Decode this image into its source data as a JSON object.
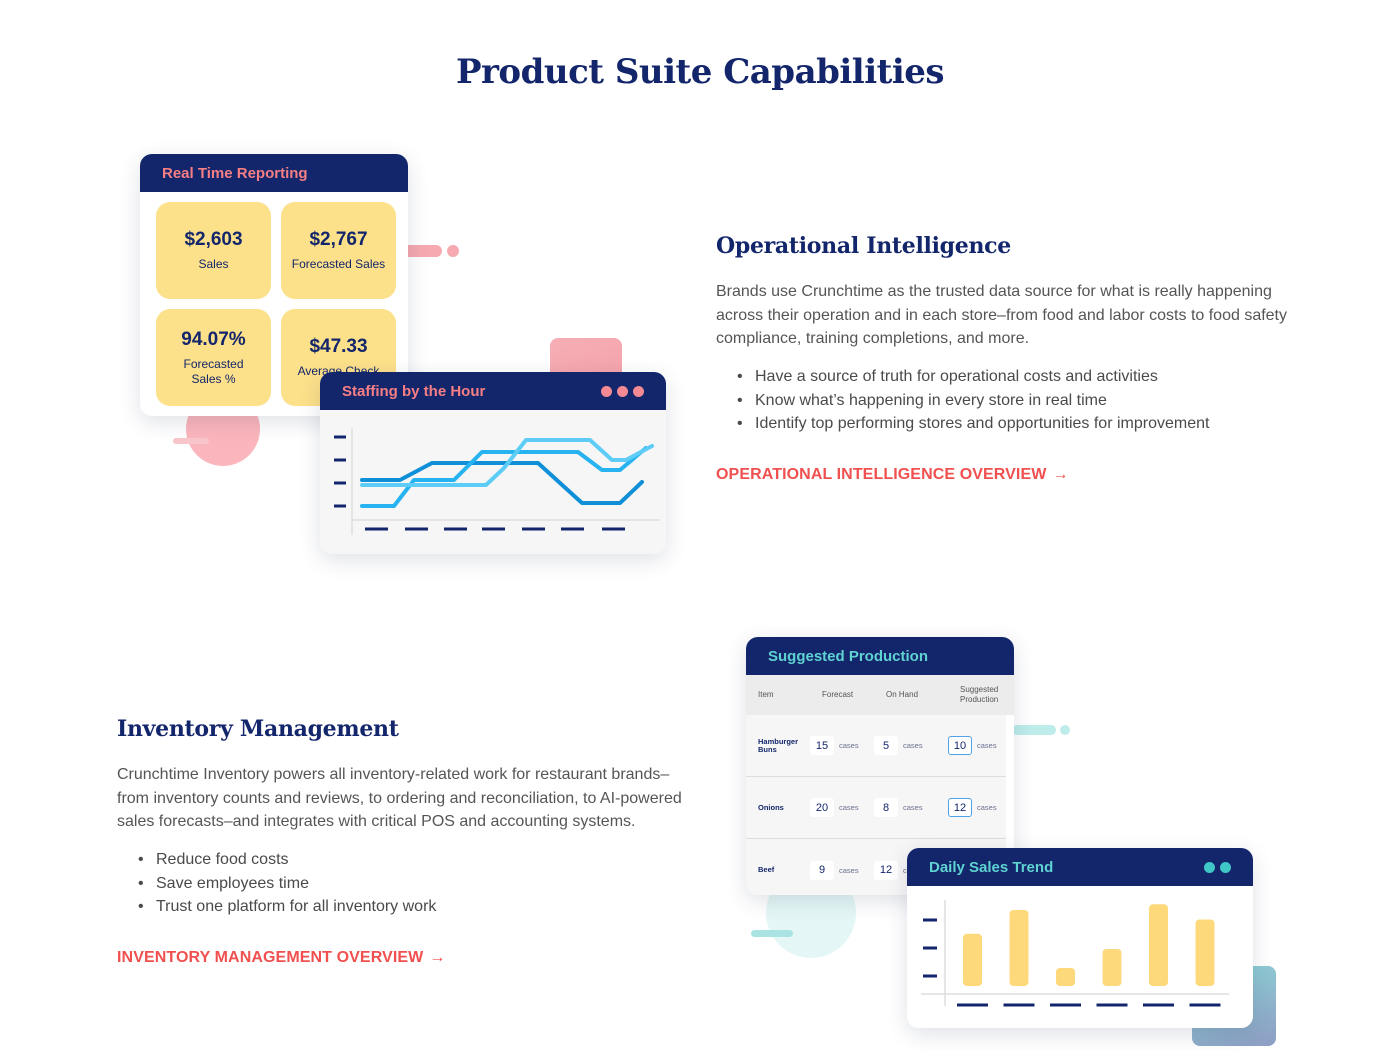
{
  "page": {
    "title": "Product Suite Capabilities"
  },
  "operational": {
    "heading": "Operational Intelligence",
    "body_lines": [
      "Brands use Crunchtime as the trusted data source for what is really happening",
      "across their operation and in each store–from food and labor costs to food safety",
      "compliance, training completions, and more."
    ],
    "bullets": [
      "Have a source of truth for operational costs and activities",
      "Know what’s happening in every store in real time",
      "Identify top performing stores and opportunities for improvement"
    ],
    "cta": "OPERATIONAL INTELLIGENCE OVERVIEW",
    "cta_arrow": "→"
  },
  "inventory": {
    "heading": "Inventory Management",
    "body_lines": [
      "Crunchtime Inventory powers all inventory-related work for restaurant brands–",
      "from inventory counts and reviews, to ordering and reconciliation, to AI-powered",
      "sales forecasts–and integrates with critical POS and accounting systems."
    ],
    "bullets": [
      "Reduce food costs",
      "Save employees time",
      "Trust one platform for all inventory work"
    ],
    "cta": "INVENTORY MANAGEMENT OVERVIEW",
    "cta_arrow": "→"
  },
  "realtime_card": {
    "title": "Real Time Reporting",
    "tiles": [
      {
        "value": "$2,603",
        "label": "Sales"
      },
      {
        "value": "$2,767",
        "label": "Forecasted Sales"
      },
      {
        "value": "94.07%",
        "label": "Forecasted Sales %"
      },
      {
        "value": "$47.33",
        "label": "Average Check"
      }
    ]
  },
  "staffing_card": {
    "title": "Staffing by the Hour",
    "dot_colors": [
      "#f38a93",
      "#f38a93",
      "#f38a93"
    ],
    "line_colors": [
      "#0f8fd8",
      "#27b3f0",
      "#5dccf7"
    ]
  },
  "production_card": {
    "title": "Suggested Production",
    "columns": [
      "Item",
      "Forecast",
      "On Hand",
      "Suggested Production"
    ],
    "unit": "cases",
    "rows": [
      {
        "item": "Hamburger Buns",
        "forecast": "15",
        "on_hand": "5",
        "suggested": "10"
      },
      {
        "item": "Onions",
        "forecast": "20",
        "on_hand": "8",
        "suggested": "12"
      },
      {
        "item": "Beef",
        "forecast": "9",
        "on_hand": "12",
        "suggested": ""
      }
    ]
  },
  "sales_trend_card": {
    "title": "Daily Sales Trend",
    "dot_colors": [
      "#3fc6c6",
      "#3fc6c6"
    ],
    "bar_color": "#fdd97c",
    "bar_values": [
      0.55,
      0.8,
      0.19,
      0.39,
      0.86,
      0.7
    ]
  },
  "colors": {
    "navy": "#13266b",
    "accent_red": "#f0504f",
    "title_pink": "#f57f84",
    "title_teal": "#5fd2d2",
    "tile_yellow": "#fde08a"
  }
}
